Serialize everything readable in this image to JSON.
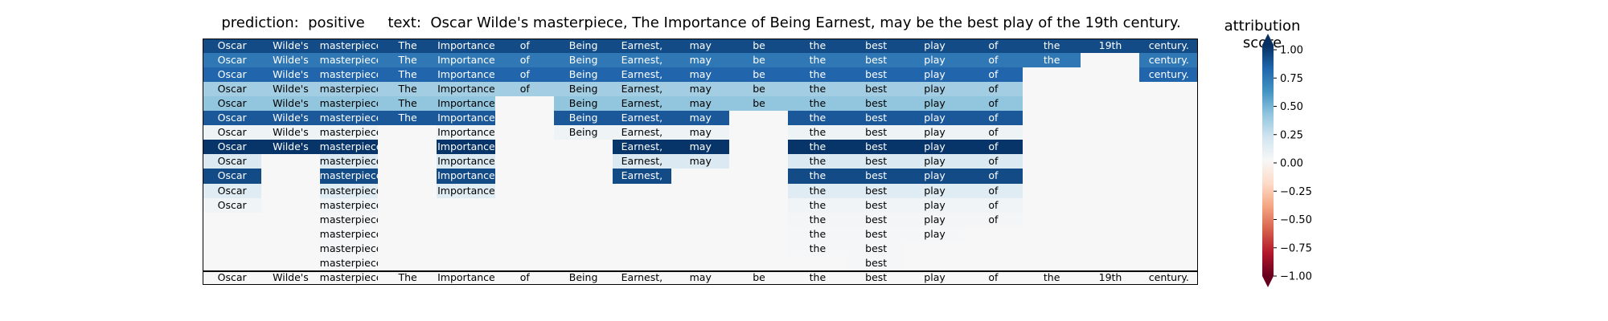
{
  "title": "prediction:  positive     text:  Oscar Wilde's masterpiece, The Importance of Being Earnest, may be the best play of the 19th century.",
  "colorbar": {
    "label": "attribution score",
    "ticks": [
      "1.00",
      "0.75",
      "0.50",
      "0.25",
      "0.00",
      "−0.25",
      "−0.50",
      "−0.75",
      "−1.00"
    ]
  },
  "chart_data": {
    "type": "heatmap",
    "prediction": "positive",
    "text": "Oscar Wilde's masterpiece, The Importance of Being Earnest, may be the best play of the 19th century.",
    "tokens": [
      "Oscar",
      "Wilde's",
      "masterpiece,",
      "The",
      "Importance",
      "of",
      "Being",
      "Earnest,",
      "may",
      "be",
      "the",
      "best",
      "play",
      "of",
      "the",
      "19th",
      "century."
    ],
    "rows": [
      {
        "labels": [
          "Oscar",
          "Wilde's",
          "masterpiece,",
          "The",
          "Importance",
          "of",
          "Being",
          "Earnest,",
          "may",
          "be",
          "the",
          "best",
          "play",
          "of",
          "the",
          "19th",
          "century."
        ],
        "values": [
          0.9,
          0.9,
          0.9,
          0.9,
          0.9,
          0.9,
          0.9,
          0.9,
          0.9,
          0.9,
          0.9,
          0.9,
          0.9,
          0.9,
          0.9,
          0.9,
          0.9
        ]
      },
      {
        "labels": [
          "Oscar",
          "Wilde's",
          "masterpiece,",
          "The",
          "Importance",
          "of",
          "Being",
          "Earnest,",
          "may",
          "be",
          "the",
          "best",
          "play",
          "of",
          "the",
          "",
          "century."
        ],
        "values": [
          0.72,
          0.72,
          0.72,
          0.72,
          0.72,
          0.72,
          0.72,
          0.72,
          0.72,
          0.72,
          0.72,
          0.72,
          0.72,
          0.72,
          0.72,
          0,
          0.72
        ]
      },
      {
        "labels": [
          "Oscar",
          "Wilde's",
          "masterpiece,",
          "The",
          "Importance",
          "of",
          "Being",
          "Earnest,",
          "may",
          "be",
          "the",
          "best",
          "play",
          "of",
          "",
          "",
          "century."
        ],
        "values": [
          0.8,
          0.8,
          0.8,
          0.8,
          0.8,
          0.8,
          0.8,
          0.8,
          0.8,
          0.8,
          0.8,
          0.8,
          0.8,
          0.8,
          0,
          0,
          0.8
        ]
      },
      {
        "labels": [
          "Oscar",
          "Wilde's",
          "masterpiece,",
          "The",
          "Importance",
          "of",
          "Being",
          "Earnest,",
          "may",
          "be",
          "the",
          "best",
          "play",
          "of",
          "",
          "",
          ""
        ],
        "values": [
          0.35,
          0.35,
          0.35,
          0.35,
          0.35,
          0.35,
          0.35,
          0.35,
          0.35,
          0.35,
          0.35,
          0.35,
          0.35,
          0.35,
          0,
          0,
          0
        ]
      },
      {
        "labels": [
          "Oscar",
          "Wilde's",
          "masterpiece,",
          "The",
          "Importance",
          "",
          "Being",
          "Earnest,",
          "may",
          "be",
          "the",
          "best",
          "play",
          "of",
          "",
          "",
          ""
        ],
        "values": [
          0.4,
          0.4,
          0.4,
          0.4,
          0.4,
          0,
          0.4,
          0.4,
          0.4,
          0.4,
          0.4,
          0.4,
          0.4,
          0.4,
          0,
          0,
          0
        ]
      },
      {
        "labels": [
          "Oscar",
          "Wilde's",
          "masterpiece,",
          "The",
          "Importance",
          "",
          "Being",
          "Earnest,",
          "may",
          "",
          "the",
          "best",
          "play",
          "of",
          "",
          "",
          ""
        ],
        "values": [
          0.85,
          0.85,
          0.85,
          0.85,
          0.85,
          0,
          0.85,
          0.85,
          0.85,
          0,
          0.85,
          0.85,
          0.85,
          0.85,
          0,
          0,
          0
        ]
      },
      {
        "labels": [
          "Oscar",
          "Wilde's",
          "masterpiece,",
          "",
          "Importance",
          "",
          "Being",
          "Earnest,",
          "may",
          "",
          "the",
          "best",
          "play",
          "of",
          "",
          "",
          ""
        ],
        "values": [
          0.05,
          0.05,
          0.05,
          0,
          0.05,
          0,
          0.05,
          0.05,
          0.05,
          0,
          0.05,
          0.05,
          0.05,
          0.05,
          0,
          0,
          0
        ]
      },
      {
        "labels": [
          "Oscar",
          "Wilde's",
          "masterpiece",
          "",
          "Importance",
          "",
          "",
          "Earnest,",
          "may",
          "",
          "the",
          "best",
          "play",
          "of",
          "",
          "",
          ""
        ],
        "values": [
          0.98,
          0.98,
          0.98,
          0,
          0.98,
          0,
          0,
          0.98,
          0.98,
          0,
          0.98,
          0.98,
          0.98,
          0.98,
          0,
          0,
          0
        ]
      },
      {
        "labels": [
          "Oscar",
          "",
          "masterpiece,",
          "",
          "Importance",
          "",
          "",
          "Earnest,",
          "may",
          "",
          "the",
          "best",
          "play",
          "of",
          "",
          "",
          ""
        ],
        "values": [
          0.15,
          0,
          0.15,
          0,
          0.15,
          0,
          0,
          0.15,
          0.15,
          0,
          0.15,
          0.15,
          0.15,
          0.15,
          0,
          0,
          0
        ]
      },
      {
        "labels": [
          "Oscar",
          "",
          "masterpiece",
          "",
          "Importance",
          "",
          "",
          "Earnest,",
          "",
          "",
          "the",
          "best",
          "play",
          "of",
          "",
          "",
          ""
        ],
        "values": [
          0.9,
          0,
          0.9,
          0,
          0.9,
          0,
          0,
          0.9,
          0,
          0,
          0.9,
          0.9,
          0.9,
          0.9,
          0,
          0,
          0
        ]
      },
      {
        "labels": [
          "Oscar",
          "",
          "masterpiece,",
          "",
          "Importance",
          "",
          "",
          "",
          "",
          "",
          "the",
          "best",
          "play",
          "of",
          "",
          "",
          ""
        ],
        "values": [
          0.12,
          0,
          0.12,
          0,
          0.12,
          0,
          0,
          0,
          0,
          0,
          0.12,
          0.12,
          0.12,
          0.12,
          0,
          0,
          0
        ]
      },
      {
        "labels": [
          "Oscar",
          "",
          "masterpiece,",
          "",
          "",
          "",
          "",
          "",
          "",
          "",
          "the",
          "best",
          "play",
          "of",
          "",
          "",
          ""
        ],
        "values": [
          0.03,
          0,
          0.03,
          0,
          0,
          0,
          0,
          0,
          0,
          0,
          0.03,
          0.03,
          0.03,
          0.03,
          0,
          0,
          0
        ]
      },
      {
        "labels": [
          "",
          "",
          "masterpiece,",
          "",
          "",
          "",
          "",
          "",
          "",
          "",
          "the",
          "best",
          "play",
          "of",
          "",
          "",
          ""
        ],
        "values": [
          0,
          0,
          0.02,
          0,
          0,
          0,
          0,
          0,
          0,
          0,
          0.02,
          0.02,
          0.02,
          0.02,
          0,
          0,
          0
        ]
      },
      {
        "labels": [
          "",
          "",
          "masterpiece,",
          "",
          "",
          "",
          "",
          "",
          "",
          "",
          "the",
          "best",
          "play",
          "",
          "",
          "",
          ""
        ],
        "values": [
          0,
          0,
          0.01,
          0,
          0,
          0,
          0,
          0,
          0,
          0,
          0.01,
          0.01,
          0.01,
          0,
          0,
          0,
          0
        ]
      },
      {
        "labels": [
          "",
          "",
          "masterpiece,",
          "",
          "",
          "",
          "",
          "",
          "",
          "",
          "the",
          "best",
          "",
          "",
          "",
          "",
          ""
        ],
        "values": [
          0,
          0,
          0.01,
          0,
          0,
          0,
          0,
          0,
          0,
          0,
          0.01,
          0.01,
          0,
          0,
          0,
          0,
          0
        ]
      },
      {
        "labels": [
          "",
          "",
          "masterpiece,",
          "",
          "",
          "",
          "",
          "",
          "",
          "",
          "",
          "best",
          "",
          "",
          "",
          "",
          ""
        ],
        "values": [
          0,
          0,
          0.01,
          0,
          0,
          0,
          0,
          0,
          0,
          0,
          0,
          0.01,
          0,
          0,
          0,
          0,
          0
        ]
      },
      {
        "labels": [
          "Oscar",
          "Wilde's",
          "masterpiece,",
          "The",
          "Importance",
          "of",
          "Being",
          "Earnest,",
          "may",
          "be",
          "the",
          "best",
          "play",
          "of",
          "the",
          "19th",
          "century."
        ],
        "values": [
          0,
          0,
          0,
          0,
          0,
          0,
          0,
          0,
          0,
          0,
          0,
          0,
          0,
          0,
          0,
          0,
          0
        ]
      }
    ],
    "colormap": "RdBu",
    "vmin": -1,
    "vmax": 1
  }
}
